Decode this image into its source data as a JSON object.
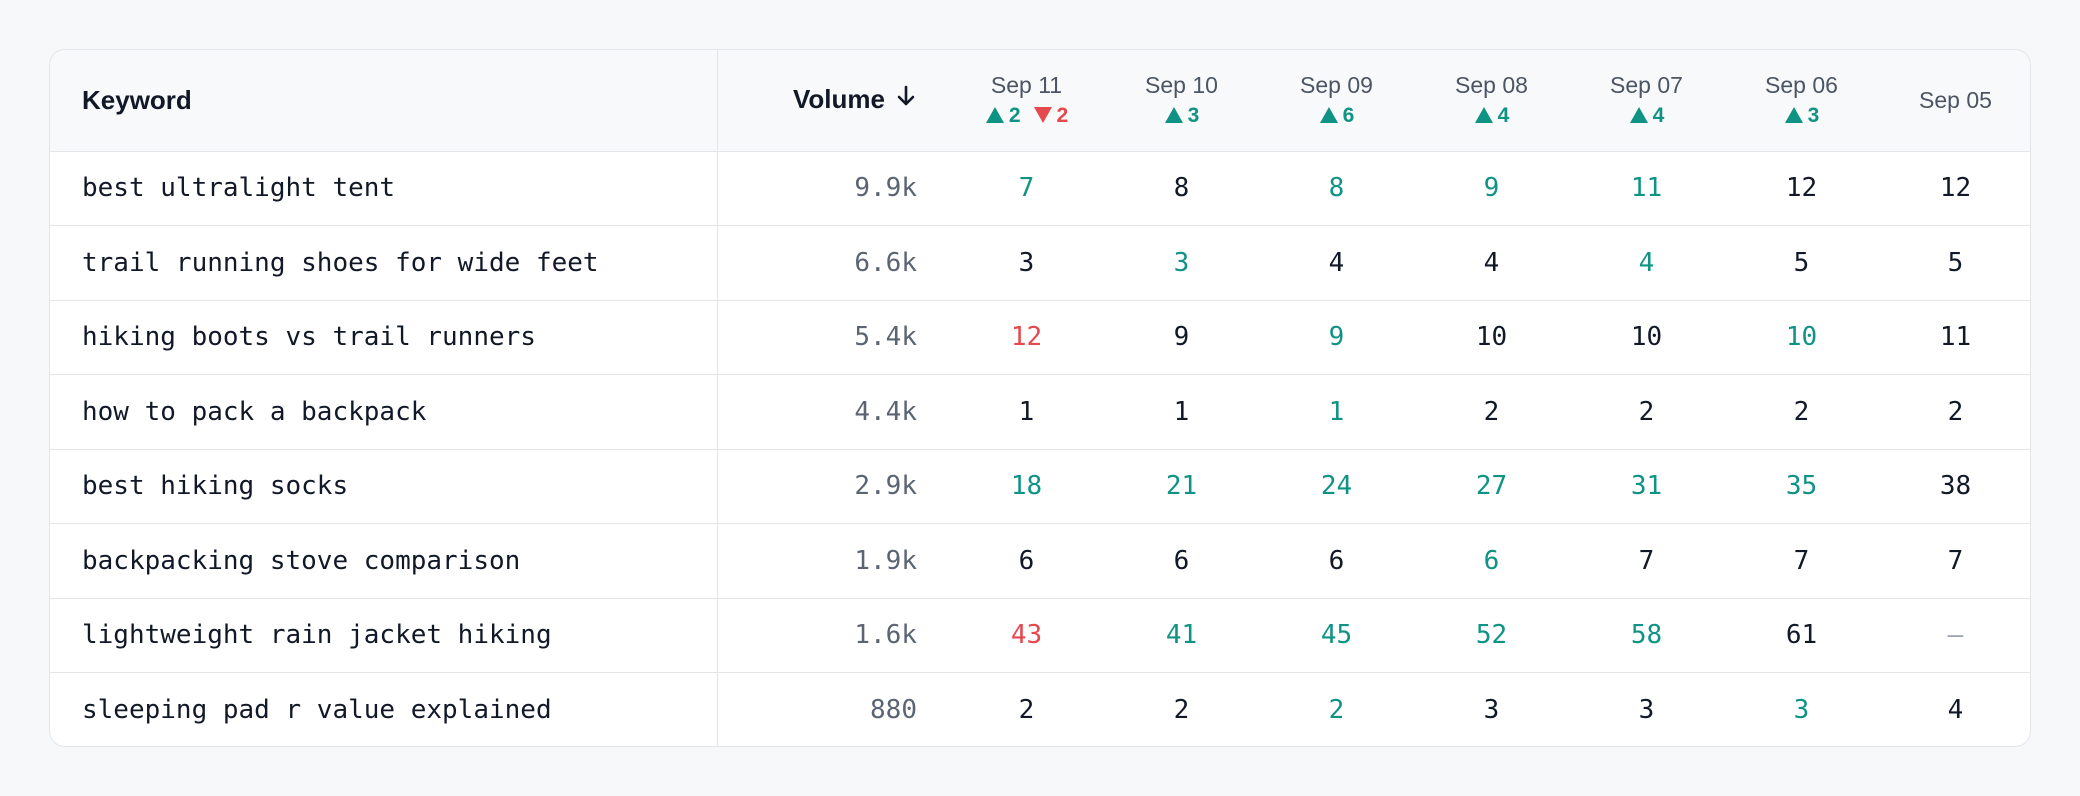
{
  "table": {
    "headers": {
      "keyword": "Keyword",
      "volume": "Volume"
    },
    "colors": {
      "improved": "#0e9384",
      "declined": "#e5484d",
      "neutral": "#111827",
      "muted": "#9ca3af"
    },
    "days": [
      {
        "label": "Sep 11",
        "up": "2",
        "down": "2"
      },
      {
        "label": "Sep 10",
        "up": "3",
        "down": null
      },
      {
        "label": "Sep 09",
        "up": "6",
        "down": null
      },
      {
        "label": "Sep 08",
        "up": "4",
        "down": null
      },
      {
        "label": "Sep 07",
        "up": "4",
        "down": null
      },
      {
        "label": "Sep 06",
        "up": "3",
        "down": null
      },
      {
        "label": "Sep 05",
        "up": null,
        "down": null
      }
    ],
    "rows": [
      {
        "keyword": "best ultralight tent",
        "volume": "9.9k",
        "ranks": [
          {
            "value": "7",
            "trend": "improved"
          },
          {
            "value": "8",
            "trend": "neutral"
          },
          {
            "value": "8",
            "trend": "improved"
          },
          {
            "value": "9",
            "trend": "improved"
          },
          {
            "value": "11",
            "trend": "improved"
          },
          {
            "value": "12",
            "trend": "neutral"
          },
          {
            "value": "12",
            "trend": "neutral"
          }
        ]
      },
      {
        "keyword": "trail running shoes for wide feet",
        "volume": "6.6k",
        "ranks": [
          {
            "value": "3",
            "trend": "neutral"
          },
          {
            "value": "3",
            "trend": "improved"
          },
          {
            "value": "4",
            "trend": "neutral"
          },
          {
            "value": "4",
            "trend": "neutral"
          },
          {
            "value": "4",
            "trend": "improved"
          },
          {
            "value": "5",
            "trend": "neutral"
          },
          {
            "value": "5",
            "trend": "neutral"
          }
        ]
      },
      {
        "keyword": "hiking boots vs trail runners",
        "volume": "5.4k",
        "ranks": [
          {
            "value": "12",
            "trend": "declined"
          },
          {
            "value": "9",
            "trend": "neutral"
          },
          {
            "value": "9",
            "trend": "improved"
          },
          {
            "value": "10",
            "trend": "neutral"
          },
          {
            "value": "10",
            "trend": "neutral"
          },
          {
            "value": "10",
            "trend": "improved"
          },
          {
            "value": "11",
            "trend": "neutral"
          }
        ]
      },
      {
        "keyword": "how to pack a backpack",
        "volume": "4.4k",
        "ranks": [
          {
            "value": "1",
            "trend": "neutral"
          },
          {
            "value": "1",
            "trend": "neutral"
          },
          {
            "value": "1",
            "trend": "improved"
          },
          {
            "value": "2",
            "trend": "neutral"
          },
          {
            "value": "2",
            "trend": "neutral"
          },
          {
            "value": "2",
            "trend": "neutral"
          },
          {
            "value": "2",
            "trend": "neutral"
          }
        ]
      },
      {
        "keyword": "best hiking socks",
        "volume": "2.9k",
        "ranks": [
          {
            "value": "18",
            "trend": "improved"
          },
          {
            "value": "21",
            "trend": "improved"
          },
          {
            "value": "24",
            "trend": "improved"
          },
          {
            "value": "27",
            "trend": "improved"
          },
          {
            "value": "31",
            "trend": "improved"
          },
          {
            "value": "35",
            "trend": "improved"
          },
          {
            "value": "38",
            "trend": "neutral"
          }
        ]
      },
      {
        "keyword": "backpacking stove comparison",
        "volume": "1.9k",
        "ranks": [
          {
            "value": "6",
            "trend": "neutral"
          },
          {
            "value": "6",
            "trend": "neutral"
          },
          {
            "value": "6",
            "trend": "neutral"
          },
          {
            "value": "6",
            "trend": "improved"
          },
          {
            "value": "7",
            "trend": "neutral"
          },
          {
            "value": "7",
            "trend": "neutral"
          },
          {
            "value": "7",
            "trend": "neutral"
          }
        ]
      },
      {
        "keyword": "lightweight rain jacket hiking",
        "volume": "1.6k",
        "ranks": [
          {
            "value": "43",
            "trend": "declined"
          },
          {
            "value": "41",
            "trend": "improved"
          },
          {
            "value": "45",
            "trend": "improved"
          },
          {
            "value": "52",
            "trend": "improved"
          },
          {
            "value": "58",
            "trend": "improved"
          },
          {
            "value": "61",
            "trend": "neutral"
          },
          {
            "value": "—",
            "trend": "none"
          }
        ]
      },
      {
        "keyword": "sleeping pad r value explained",
        "volume": "880",
        "ranks": [
          {
            "value": "2",
            "trend": "neutral"
          },
          {
            "value": "2",
            "trend": "neutral"
          },
          {
            "value": "2",
            "trend": "improved"
          },
          {
            "value": "3",
            "trend": "neutral"
          },
          {
            "value": "3",
            "trend": "neutral"
          },
          {
            "value": "3",
            "trend": "improved"
          },
          {
            "value": "4",
            "trend": "neutral"
          }
        ]
      }
    ]
  }
}
